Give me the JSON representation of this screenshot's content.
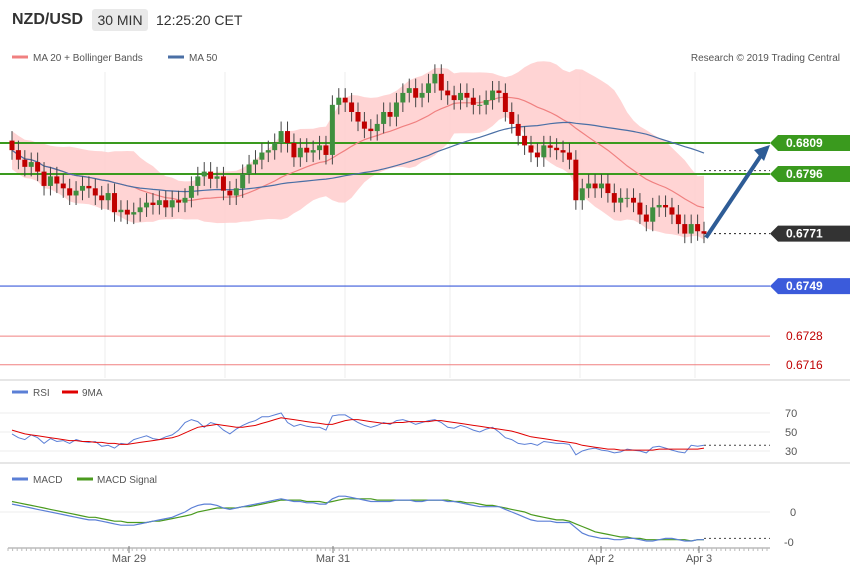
{
  "header": {
    "symbol": "NZD/USD",
    "timeframe": "30 MIN",
    "time": "12:25:20 CET"
  },
  "legend": {
    "bollinger": "MA 20 + Bollinger Bands",
    "ma50": "MA 50",
    "copyright": "Research © 2019 Trading Central"
  },
  "colors": {
    "bullish_candle": "#3f8f3f",
    "bearish_candle": "#c00000",
    "bollinger_band": "#ffcdcd",
    "ma20": "#f08080",
    "ma50": "#4a6fa5",
    "resistance": "#3a9a1e",
    "pivot": "#3b5bdb",
    "support": "#f08080",
    "arrow": "#2e5c96",
    "rsi": "#5b7fd6",
    "rsi_ma": "#e00000",
    "macd": "#5b7fd6",
    "macd_signal": "#4a9a1e"
  },
  "chart_data": [
    {
      "type": "candlestick",
      "ylim": [
        0.6708,
        0.6826
      ],
      "indicators": [
        "MA 20 + Bollinger Bands",
        "MA 50"
      ],
      "close_series": [
        0.6806,
        0.6802,
        0.6799,
        0.6801,
        0.6797,
        0.6791,
        0.6795,
        0.6792,
        0.679,
        0.6787,
        0.6789,
        0.6791,
        0.679,
        0.6787,
        0.6785,
        0.6788,
        0.678,
        0.6781,
        0.6779,
        0.678,
        0.6782,
        0.6784,
        0.6783,
        0.6785,
        0.6782,
        0.6785,
        0.6784,
        0.6786,
        0.6791,
        0.6795,
        0.6797,
        0.6794,
        0.6795,
        0.6789,
        0.6787,
        0.679,
        0.6796,
        0.68,
        0.6802,
        0.6805,
        0.6806,
        0.6809,
        0.6814,
        0.6809,
        0.6803,
        0.6807,
        0.6805,
        0.6806,
        0.6808,
        0.6804,
        0.6825,
        0.6828,
        0.6826,
        0.6822,
        0.6818,
        0.6815,
        0.6814,
        0.6817,
        0.6822,
        0.682,
        0.6826,
        0.683,
        0.6832,
        0.6828,
        0.683,
        0.6834,
        0.6838,
        0.6831,
        0.6829,
        0.6827,
        0.683,
        0.6828,
        0.6825,
        0.6825,
        0.6827,
        0.6831,
        0.683,
        0.6822,
        0.6817,
        0.6812,
        0.6808,
        0.6805,
        0.6803,
        0.6808,
        0.6807,
        0.6806,
        0.6805,
        0.6802,
        0.6785,
        0.679,
        0.6792,
        0.679,
        0.6792,
        0.6788,
        0.6784,
        0.6786,
        0.6786,
        0.6784,
        0.6779,
        0.6776,
        0.6782,
        0.6783,
        0.6782,
        0.6779,
        0.6775,
        0.6771,
        0.6775,
        0.6772,
        0.6771
      ],
      "levels": [
        {
          "label": "0.6809",
          "value": 0.6809,
          "kind": "resistance"
        },
        {
          "label": "0.6796",
          "value": 0.6796,
          "kind": "resistance"
        },
        {
          "label": "0.6771",
          "value": 0.6771,
          "kind": "last"
        },
        {
          "label": "0.6749",
          "value": 0.6749,
          "kind": "pivot"
        },
        {
          "label": "0.6728",
          "value": 0.6728,
          "kind": "support"
        },
        {
          "label": "0.6716",
          "value": 0.6716,
          "kind": "support"
        }
      ],
      "projection": {
        "from": 0.6771,
        "to": 0.6809,
        "direction": "up"
      }
    },
    {
      "type": "line",
      "title": "RSI",
      "ylim": [
        20,
        80
      ],
      "yticks": [
        "70",
        "50",
        "30"
      ],
      "series": [
        {
          "name": "RSI",
          "values": [
            48,
            44,
            42,
            47,
            44,
            38,
            43,
            40,
            41,
            38,
            42,
            40,
            39,
            40,
            35,
            36,
            33,
            38,
            37,
            42,
            44,
            46,
            43,
            42,
            45,
            47,
            52,
            60,
            63,
            61,
            55,
            60,
            58,
            52,
            48,
            53,
            57,
            60,
            62,
            66,
            66,
            68,
            70,
            60,
            56,
            58,
            56,
            55,
            55,
            52,
            67,
            68,
            68,
            64,
            60,
            57,
            55,
            57,
            60,
            58,
            62,
            63,
            61,
            58,
            60,
            62,
            63,
            60,
            55,
            54,
            57,
            55,
            52,
            50,
            53,
            55,
            50,
            44,
            42,
            38,
            37,
            38,
            36,
            40,
            39,
            38,
            38,
            37,
            26,
            30,
            32,
            33,
            31,
            30,
            28,
            29,
            32,
            31,
            30,
            28,
            34,
            35,
            33,
            31,
            29,
            28,
            36,
            35,
            36
          ]
        },
        {
          "name": "9MA",
          "values": [
            52,
            50,
            48,
            47,
            46,
            45,
            44,
            43,
            42,
            41,
            41,
            40,
            40,
            39,
            39,
            38,
            38,
            37,
            37,
            38,
            39,
            40,
            41,
            42,
            43,
            44,
            46,
            49,
            52,
            55,
            56,
            57,
            58,
            57,
            56,
            55,
            55,
            56,
            57,
            59,
            61,
            63,
            65,
            64,
            63,
            62,
            61,
            60,
            59,
            58,
            58,
            60,
            62,
            63,
            63,
            62,
            61,
            60,
            59,
            59,
            60,
            60,
            61,
            61,
            61,
            61,
            62,
            62,
            61,
            60,
            59,
            58,
            57,
            56,
            55,
            54,
            53,
            52,
            51,
            49,
            47,
            45,
            44,
            43,
            42,
            41,
            40,
            39,
            38,
            36,
            35,
            34,
            33,
            32,
            32,
            31,
            31,
            31,
            31,
            31,
            31,
            32,
            32,
            32,
            32,
            32,
            32,
            32,
            33
          ]
        }
      ]
    },
    {
      "type": "line",
      "title": "MACD",
      "ylim": [
        -0.0025,
        0.0015
      ],
      "yticks": [
        "0",
        "-0"
      ],
      "x_tick_labels": [
        "Mar 29",
        "Mar 31",
        "Apr 2",
        "Apr 3"
      ],
      "series": [
        {
          "name": "MACD",
          "values": [
            0.0006,
            0.0005,
            0.0004,
            0.0003,
            0.0002,
            0.0001,
            -0.0,
            -0.0001,
            -0.0002,
            -0.0003,
            -0.0004,
            -0.0005,
            -0.0006,
            -0.0006,
            -0.0007,
            -0.0008,
            -0.0009,
            -0.001,
            -0.001,
            -0.001,
            -0.0009,
            -0.0008,
            -0.0007,
            -0.0006,
            -0.0005,
            -0.0004,
            -0.0002,
            0.0,
            0.0003,
            0.0005,
            0.0006,
            0.0006,
            0.0005,
            0.0003,
            0.0002,
            0.0003,
            0.0004,
            0.0005,
            0.0006,
            0.0007,
            0.0008,
            0.0009,
            0.001,
            0.0009,
            0.0008,
            0.0008,
            0.0007,
            0.0007,
            0.0006,
            0.0006,
            0.001,
            0.0012,
            0.0012,
            0.0011,
            0.001,
            0.0009,
            0.0008,
            0.0008,
            0.0008,
            0.0008,
            0.0009,
            0.0009,
            0.0009,
            0.0008,
            0.0008,
            0.0009,
            0.0009,
            0.0009,
            0.0008,
            0.0008,
            0.0007,
            0.0006,
            0.0005,
            0.0004,
            0.0004,
            0.0004,
            0.0004,
            0.0002,
            0.0,
            -0.0002,
            -0.0004,
            -0.0006,
            -0.0007,
            -0.0007,
            -0.0007,
            -0.0008,
            -0.0008,
            -0.0008,
            -0.0012,
            -0.0016,
            -0.0018,
            -0.0019,
            -0.002,
            -0.002,
            -0.0021,
            -0.0021,
            -0.002,
            -0.002,
            -0.0021,
            -0.0022,
            -0.0022,
            -0.0021,
            -0.002,
            -0.002,
            -0.0021,
            -0.0022,
            -0.0022,
            -0.0021,
            -0.0021
          ]
        },
        {
          "name": "MACD Signal",
          "values": [
            0.0008,
            0.0007,
            0.0006,
            0.0005,
            0.0004,
            0.0003,
            0.0002,
            0.0001,
            0.0,
            -0.0001,
            -0.0002,
            -0.0003,
            -0.0004,
            -0.0004,
            -0.0005,
            -0.0006,
            -0.0007,
            -0.0007,
            -0.0008,
            -0.0008,
            -0.0008,
            -0.0008,
            -0.0007,
            -0.0007,
            -0.0006,
            -0.0005,
            -0.0004,
            -0.0003,
            -0.0002,
            0.0,
            0.0001,
            0.0002,
            0.0003,
            0.0003,
            0.0003,
            0.0003,
            0.0004,
            0.0004,
            0.0005,
            0.0006,
            0.0007,
            0.0008,
            0.0009,
            0.0009,
            0.0009,
            0.0009,
            0.0008,
            0.0008,
            0.0008,
            0.0007,
            0.0008,
            0.0009,
            0.001,
            0.001,
            0.001,
            0.001,
            0.001,
            0.0009,
            0.0009,
            0.0009,
            0.0009,
            0.0009,
            0.0009,
            0.0009,
            0.0009,
            0.0009,
            0.0009,
            0.0009,
            0.0009,
            0.0008,
            0.0008,
            0.0007,
            0.0007,
            0.0006,
            0.0005,
            0.0005,
            0.0004,
            0.0003,
            0.0002,
            0.0001,
            0.0,
            -0.0002,
            -0.0003,
            -0.0004,
            -0.0005,
            -0.0006,
            -0.0006,
            -0.0007,
            -0.0009,
            -0.0011,
            -0.0013,
            -0.0015,
            -0.0016,
            -0.0017,
            -0.0018,
            -0.0019,
            -0.0019,
            -0.002,
            -0.002,
            -0.0021,
            -0.0021,
            -0.0021,
            -0.0021,
            -0.0021,
            -0.0021,
            -0.0021,
            -0.0022,
            -0.0021,
            -0.0021
          ]
        }
      ]
    }
  ]
}
